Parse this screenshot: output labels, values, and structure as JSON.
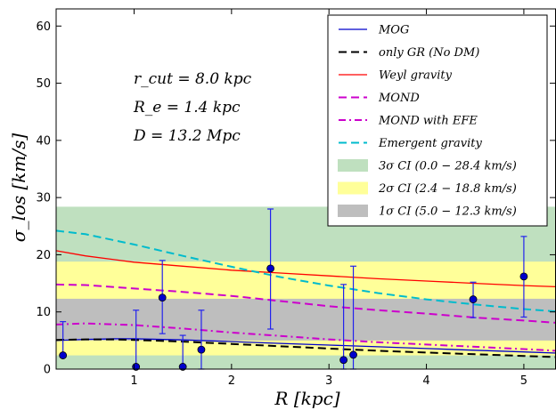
{
  "chart_data": {
    "type": "line",
    "xlabel": "R [kpc]",
    "ylabel": "σ_los [km/s]",
    "xlim": [
      0.2,
      5.33
    ],
    "ylim": [
      0,
      63
    ],
    "x_ticks": [
      1,
      2,
      3,
      4,
      5
    ],
    "y_ticks": [
      0,
      10,
      20,
      30,
      40,
      50,
      60
    ],
    "grid": false,
    "legend_position": "top-right",
    "annotations": [
      "r_cut = 8.0 kpc",
      "R_e = 1.4 kpc",
      "D = 13.2 Mpc"
    ],
    "bands": [
      {
        "name": "3σ CI (0.0 − 28.4 km/s)",
        "low": 0.0,
        "high": 28.4,
        "color": "#bfe0bf"
      },
      {
        "name": "2σ CI (2.4 − 18.8 km/s)",
        "low": 2.4,
        "high": 18.8,
        "color": "#ffff99"
      },
      {
        "name": "1σ CI (5.0 − 12.3 km/s)",
        "low": 5.0,
        "high": 12.3,
        "color": "#bebebe"
      }
    ],
    "series": [
      {
        "name": "MOG",
        "color": "#0000cc",
        "dash": "solid",
        "x": [
          0.2,
          0.5,
          0.8,
          1.0,
          1.5,
          2.0,
          2.5,
          3.0,
          3.5,
          4.0,
          4.5,
          5.0,
          5.33
        ],
        "y": [
          5.0,
          5.2,
          5.3,
          5.3,
          5.1,
          4.8,
          4.5,
          4.2,
          3.9,
          3.6,
          3.3,
          3.0,
          2.8
        ]
      },
      {
        "name": "only GR (No DM)",
        "color": "#000000",
        "dash": "dashed",
        "x": [
          0.2,
          0.5,
          0.8,
          1.0,
          1.5,
          2.0,
          2.5,
          3.0,
          3.5,
          4.0,
          4.5,
          5.0,
          5.33
        ],
        "y": [
          5.1,
          5.2,
          5.2,
          5.1,
          4.8,
          4.4,
          4.0,
          3.6,
          3.2,
          2.9,
          2.6,
          2.3,
          2.1
        ]
      },
      {
        "name": "Weyl gravity",
        "color": "#ff0000",
        "dash": "solid",
        "x": [
          0.2,
          0.5,
          1.0,
          1.5,
          2.0,
          2.5,
          3.0,
          3.5,
          4.0,
          4.5,
          5.0,
          5.33
        ],
        "y": [
          20.7,
          19.8,
          18.7,
          18.0,
          17.3,
          16.8,
          16.3,
          15.8,
          15.4,
          15.0,
          14.6,
          14.4
        ]
      },
      {
        "name": "MOND",
        "color": "#cc00cc",
        "dash": "dashed",
        "x": [
          0.2,
          0.5,
          1.0,
          1.5,
          2.0,
          2.5,
          3.0,
          3.5,
          4.0,
          4.5,
          5.0,
          5.33
        ],
        "y": [
          14.8,
          14.7,
          14.1,
          13.5,
          12.8,
          11.9,
          11.0,
          10.3,
          9.7,
          9.0,
          8.5,
          8.1
        ]
      },
      {
        "name": "MOND with EFE",
        "color": "#cc00cc",
        "dash": "dashdot",
        "x": [
          0.2,
          0.5,
          1.0,
          1.5,
          2.0,
          2.5,
          3.0,
          3.5,
          4.0,
          4.5,
          5.0,
          5.33
        ],
        "y": [
          7.8,
          8.0,
          7.7,
          7.1,
          6.4,
          5.8,
          5.2,
          4.7,
          4.3,
          3.9,
          3.5,
          3.2
        ]
      },
      {
        "name": "Emergent gravity",
        "color": "#00bbcc",
        "dash": "dashed",
        "x": [
          0.2,
          0.5,
          1.0,
          1.5,
          2.0,
          2.5,
          3.0,
          3.5,
          4.0,
          4.5,
          5.0,
          5.33
        ],
        "y": [
          24.2,
          23.6,
          21.8,
          19.8,
          17.9,
          16.1,
          14.6,
          13.3,
          12.2,
          11.3,
          10.5,
          10.1
        ]
      }
    ],
    "points": [
      {
        "x": 0.27,
        "y": 2.4,
        "err_low": 2.4,
        "err_high": 8.3
      },
      {
        "x": 1.02,
        "y": 0.4,
        "err_low": 0.4,
        "err_high": 10.3
      },
      {
        "x": 1.29,
        "y": 12.5,
        "err_low": 6.2,
        "err_high": 19.0
      },
      {
        "x": 1.5,
        "y": 0.4,
        "err_low": 0.4,
        "err_high": 5.9
      },
      {
        "x": 1.69,
        "y": 3.4,
        "err_low": 0.0,
        "err_high": 10.3
      },
      {
        "x": 2.4,
        "y": 17.6,
        "err_low": 7.0,
        "err_high": 28.0
      },
      {
        "x": 3.15,
        "y": 1.6,
        "err_low": 0.0,
        "err_high": 14.8
      },
      {
        "x": 3.25,
        "y": 2.5,
        "err_low": 0.0,
        "err_high": 18.0
      },
      {
        "x": 4.48,
        "y": 12.2,
        "err_low": 9.0,
        "err_high": 15.2
      },
      {
        "x": 5.0,
        "y": 16.2,
        "err_low": 9.1,
        "err_high": 23.2
      }
    ],
    "point_color": "#0000cc",
    "errorbar_color": "#2222ee"
  }
}
